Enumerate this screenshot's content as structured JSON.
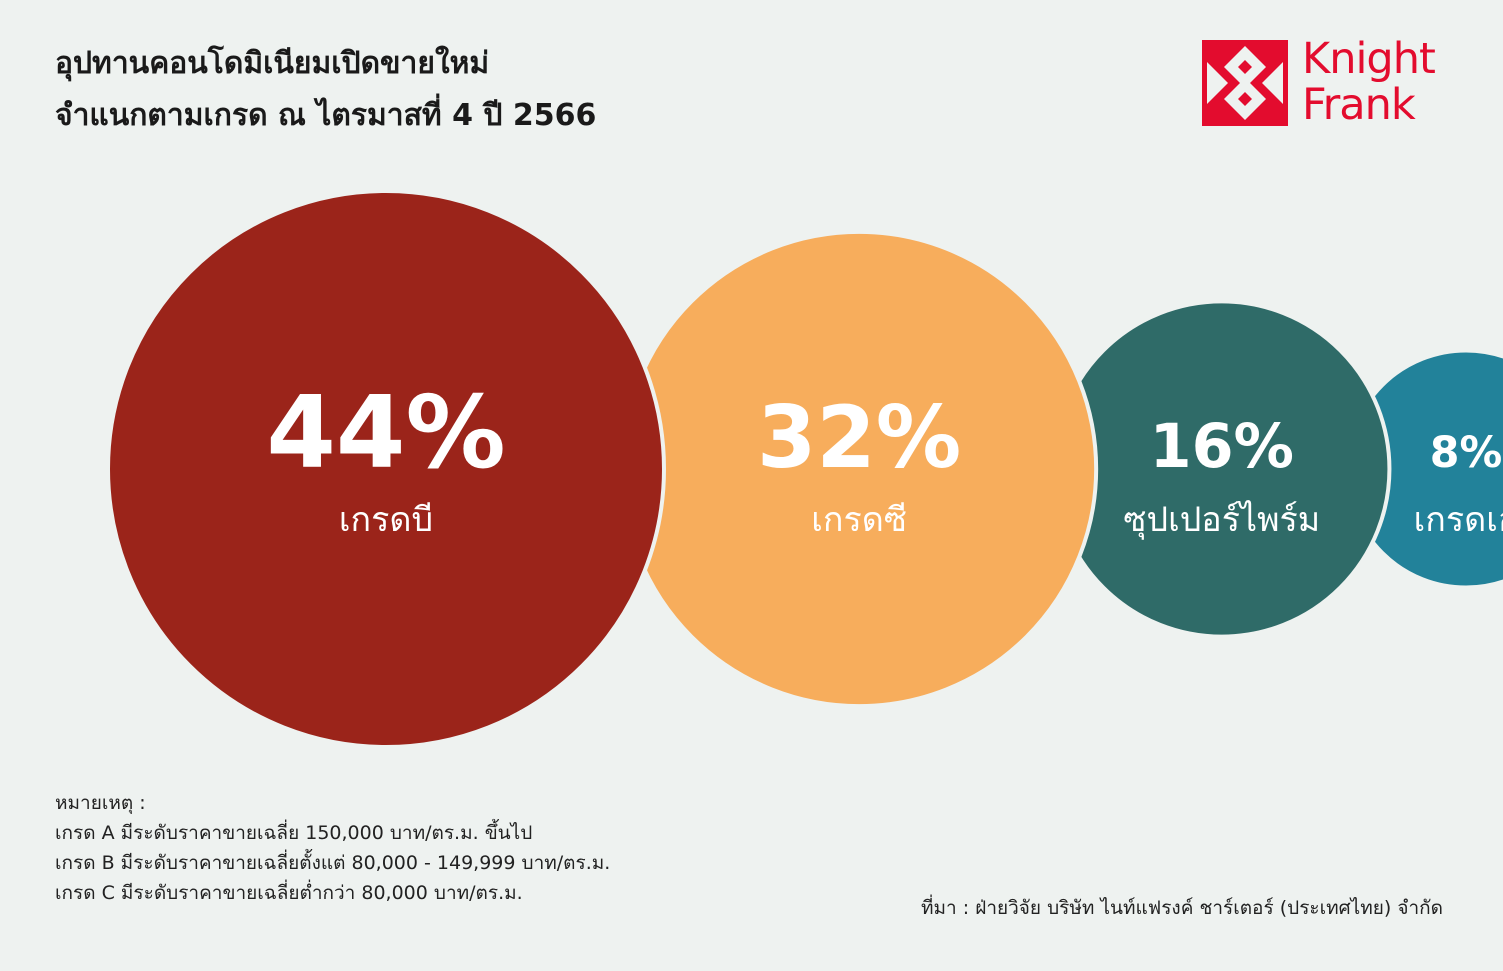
{
  "title": {
    "line1": "อุปทานคอนโดมิเนียมเปิดขายใหม่",
    "line2": "จำแนกตามเกรด ณ ไตรมาสที่ 4 ปี 2566"
  },
  "logo": {
    "line1": "Knight",
    "line2": "Frank",
    "color": "#e30c2e"
  },
  "chart_data": {
    "type": "bubble",
    "title": "อุปทานคอนโดมิเนียมเปิดขายใหม่ จำแนกตามเกรด ณ ไตรมาสที่ 4 ปี 2566",
    "unit": "%",
    "series": [
      {
        "category": "เกรดบี",
        "value": 44,
        "label": "44%",
        "color": "#9b241a"
      },
      {
        "category": "เกรดซี",
        "value": 32,
        "label": "32%",
        "color": "#f7ad5c"
      },
      {
        "category": "ซุปเปอร์ไพร์ม",
        "value": 16,
        "label": "16%",
        "color": "#2f6b68"
      },
      {
        "category": "เกรดเอ",
        "value": 8,
        "label": "8%",
        "color": "#22829a"
      }
    ]
  },
  "notes": {
    "heading": "หมายเหตุ :",
    "items": [
      "เกรด A มีระดับราคาขายเฉลี่ย 150,000 บาท/ตร.ม. ขึ้นไป",
      "เกรด B มีระดับราคาขายเฉลี่ยตั้งแต่ 80,000 - 149,999 บาท/ตร.ม.",
      "เกรด C มีระดับราคาขายเฉลี่ยต่ำกว่า 80,000 บาท/ตร.ม."
    ]
  },
  "source": "ที่มา : ฝ่ายวิจัย บริษัท ไนท์แฟรงค์ ชาร์เตอร์ (ประเทศไทย) จำกัด"
}
